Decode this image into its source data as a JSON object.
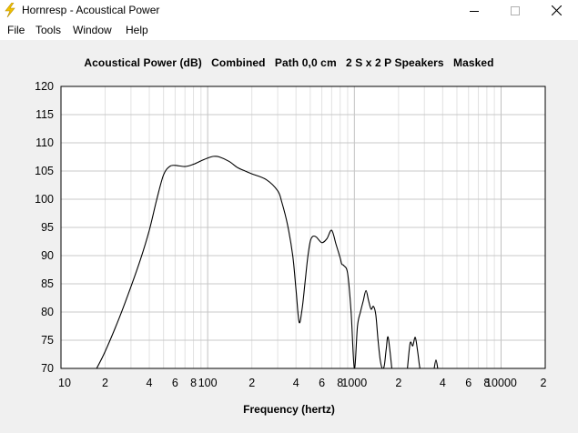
{
  "window": {
    "title": "Hornresp - Acoustical Power",
    "buttons": {
      "minimize": "—",
      "maximize": "☐",
      "close": "✕"
    }
  },
  "menu": [
    "File",
    "Tools",
    "Window",
    "Help"
  ],
  "chart_title": "Acoustical Power (dB)   Combined   Path 0,0 cm   2 S x 2 P Speakers   Masked",
  "chart_data": {
    "type": "line",
    "title": "Acoustical Power (dB)   Combined   Path 0,0 cm   2 S x 2 P Speakers   Masked",
    "xlabel": "Frequency (hertz)",
    "ylabel": "",
    "xscale": "log",
    "xlim": [
      10,
      20000
    ],
    "ylim": [
      70,
      120
    ],
    "grid": true,
    "ytick_labels": [
      "120",
      "115",
      "110",
      "105",
      "100",
      "95",
      "90",
      "85",
      "80",
      "75",
      "70"
    ],
    "xtick_labels": [
      "10",
      "2",
      "4",
      "6",
      "8",
      "100",
      "2",
      "4",
      "6",
      "8",
      "1000",
      "2",
      "4",
      "6",
      "8",
      "10000",
      "2"
    ],
    "series": [
      {
        "x": [
          17.5,
          20,
          25,
          30,
          35,
          40,
          45,
          50,
          55,
          60,
          70,
          80,
          90,
          100,
          110,
          120,
          140,
          160,
          180,
          200,
          250,
          300,
          320,
          350,
          380,
          400,
          420,
          440,
          460,
          480,
          500,
          520,
          550,
          600,
          650,
          700,
          750,
          800,
          820,
          850,
          900,
          950,
          1000,
          1050,
          1100,
          1150,
          1200,
          1250,
          1300,
          1350,
          1400,
          1450,
          1500,
          1550,
          1600,
          1650,
          1700,
          1800
        ],
        "y": [
          70,
          73,
          79,
          84.5,
          89.5,
          94.5,
          100,
          104.3,
          105.8,
          106,
          105.8,
          106.2,
          106.8,
          107.3,
          107.6,
          107.5,
          106.7,
          105.6,
          105,
          104.5,
          103.5,
          101.5,
          99.5,
          95.5,
          90,
          84,
          78.2,
          80.5,
          85,
          89.5,
          92.5,
          93.4,
          93.3,
          92.3,
          93,
          94.5,
          92,
          89.6,
          88.5,
          88.2,
          86.8,
          80,
          70,
          77.5,
          80,
          82,
          83.8,
          82,
          80.5,
          81,
          79.5,
          75,
          71.5,
          70,
          70.5,
          73.5,
          75.5,
          70
        ]
      },
      {
        "x": [
          2300,
          2400,
          2500,
          2600,
          2700,
          2800,
          2900,
          3000
        ],
        "y": [
          70,
          74.5,
          74,
          75.5,
          73,
          70,
          70,
          70
        ]
      },
      {
        "x": [
          3500,
          3600,
          3700
        ],
        "y": [
          70,
          71.5,
          70
        ]
      }
    ]
  }
}
